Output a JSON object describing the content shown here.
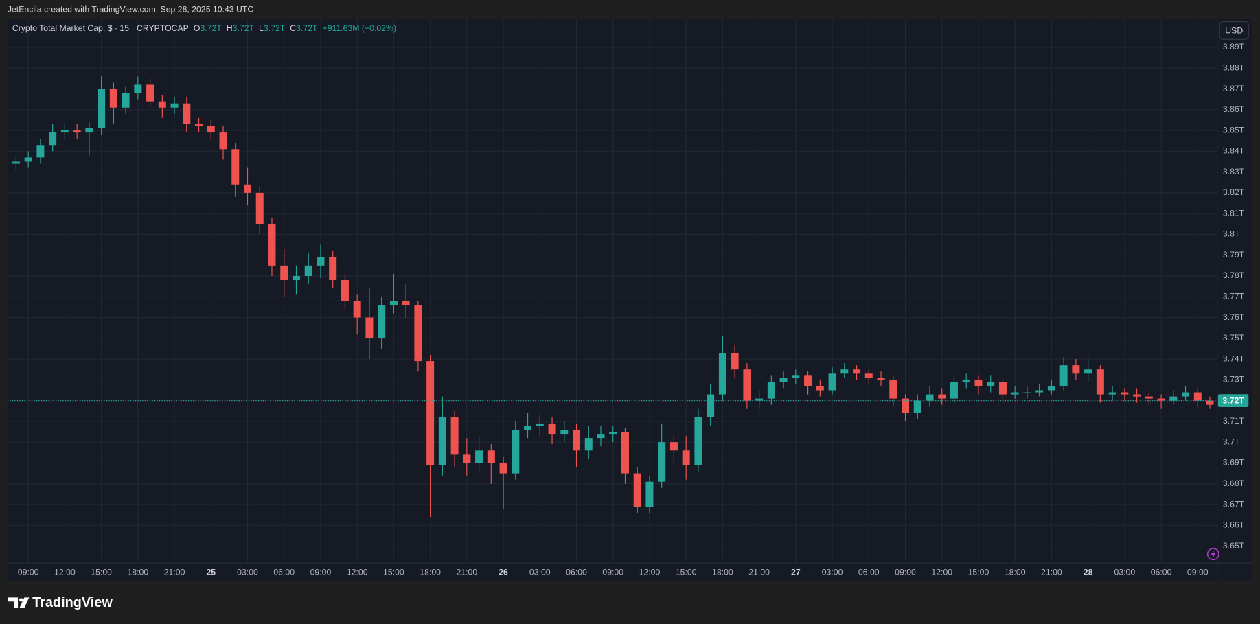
{
  "header": "JetEncila created with TradingView.com, Sep 28, 2025 10:43 UTC",
  "footer_logo": "TradingView",
  "chart_data": {
    "type": "candlestick",
    "title": "Crypto Total Market Cap, $ · 15 · CRYPTOCAP",
    "legend": {
      "open_label": "O",
      "open": "3.72T",
      "high_label": "H",
      "high": "3.72T",
      "low_label": "L",
      "low": "3.72T",
      "close_label": "C",
      "close": "3.72T",
      "change": "+911.63M (+0.02%)"
    },
    "currency": "USD",
    "up_color": "#26a69a",
    "down_color": "#ef5350",
    "x": [
      8,
      9,
      10,
      11,
      12,
      13,
      14,
      15,
      16,
      17,
      18,
      19,
      20,
      21,
      22,
      23,
      24,
      25,
      26,
      27,
      28,
      29,
      30,
      31,
      32,
      33,
      34,
      35,
      36,
      37,
      38,
      39,
      40,
      41,
      42,
      43,
      44,
      45,
      46,
      47,
      48,
      49,
      50,
      51,
      52,
      53,
      54,
      55,
      56,
      57,
      58,
      59,
      60,
      61,
      62,
      63,
      64,
      65,
      66,
      67,
      68,
      69,
      70,
      71,
      72,
      73,
      74,
      75,
      76,
      77,
      78,
      79,
      80,
      81,
      82,
      83,
      84,
      85,
      86,
      87,
      88,
      89,
      90,
      91,
      92,
      93,
      94,
      95,
      96,
      97,
      98,
      99,
      100,
      101,
      102,
      103,
      104,
      105,
      106
    ],
    "open": [
      3.834,
      3.835,
      3.837,
      3.843,
      3.849,
      3.85,
      3.849,
      3.851,
      3.87,
      3.861,
      3.868,
      3.872,
      3.864,
      3.861,
      3.863,
      3.853,
      3.852,
      3.849,
      3.841,
      3.824,
      3.82,
      3.805,
      3.785,
      3.778,
      3.78,
      3.785,
      3.789,
      3.778,
      3.768,
      3.76,
      3.75,
      3.766,
      3.768,
      3.766,
      3.739,
      3.689,
      3.712,
      3.694,
      3.69,
      3.696,
      3.69,
      3.685,
      3.706,
      3.708,
      3.709,
      3.704,
      3.706,
      3.696,
      3.702,
      3.704,
      3.705,
      3.685,
      3.669,
      3.681,
      3.7,
      3.696,
      3.689,
      3.712,
      3.723,
      3.743,
      3.735,
      3.72,
      3.721,
      3.729,
      3.731,
      3.732,
      3.727,
      3.725,
      3.733,
      3.735,
      3.733,
      3.731,
      3.73,
      3.721,
      3.714,
      3.72,
      3.723,
      3.721,
      3.729,
      3.73,
      3.727,
      3.729,
      3.723,
      3.724,
      3.724,
      3.725,
      3.727,
      3.737,
      3.733,
      3.735,
      3.723,
      3.724,
      3.723,
      3.722,
      3.721,
      3.72,
      3.722,
      3.724,
      3.72
    ],
    "high": [
      3.838,
      3.84,
      3.846,
      3.853,
      3.853,
      3.853,
      3.854,
      3.876,
      3.873,
      3.871,
      3.876,
      3.875,
      3.867,
      3.866,
      3.866,
      3.856,
      3.855,
      3.852,
      3.844,
      3.832,
      3.823,
      3.808,
      3.793,
      3.785,
      3.791,
      3.795,
      3.792,
      3.781,
      3.771,
      3.774,
      3.77,
      3.781,
      3.776,
      3.768,
      3.742,
      3.722,
      3.715,
      3.702,
      3.703,
      3.699,
      3.693,
      3.71,
      3.714,
      3.713,
      3.712,
      3.71,
      3.709,
      3.708,
      3.708,
      3.708,
      3.707,
      3.688,
      3.684,
      3.709,
      3.704,
      3.703,
      3.716,
      3.728,
      3.751,
      3.747,
      3.738,
      3.725,
      3.732,
      3.734,
      3.735,
      3.734,
      3.73,
      3.736,
      3.738,
      3.737,
      3.735,
      3.734,
      3.732,
      3.723,
      3.723,
      3.727,
      3.726,
      3.732,
      3.733,
      3.732,
      3.732,
      3.731,
      3.727,
      3.727,
      3.728,
      3.73,
      3.741,
      3.74,
      3.74,
      3.737,
      3.727,
      3.726,
      3.726,
      3.724,
      3.723,
      3.725,
      3.727,
      3.726,
      3.722
    ],
    "low": [
      3.831,
      3.832,
      3.834,
      3.84,
      3.846,
      3.846,
      3.838,
      3.848,
      3.853,
      3.858,
      3.865,
      3.861,
      3.856,
      3.858,
      3.849,
      3.849,
      3.846,
      3.836,
      3.818,
      3.814,
      3.8,
      3.78,
      3.77,
      3.771,
      3.776,
      3.779,
      3.774,
      3.764,
      3.752,
      3.74,
      3.745,
      3.762,
      3.76,
      3.734,
      3.664,
      3.684,
      3.688,
      3.684,
      3.686,
      3.68,
      3.668,
      3.682,
      3.702,
      3.703,
      3.699,
      3.7,
      3.688,
      3.692,
      3.698,
      3.7,
      3.68,
      3.666,
      3.666,
      3.678,
      3.69,
      3.682,
      3.686,
      3.708,
      3.72,
      3.731,
      3.716,
      3.716,
      3.718,
      3.726,
      3.728,
      3.723,
      3.722,
      3.723,
      3.731,
      3.73,
      3.728,
      3.727,
      3.717,
      3.71,
      3.711,
      3.717,
      3.718,
      3.719,
      3.726,
      3.723,
      3.724,
      3.719,
      3.721,
      3.721,
      3.722,
      3.723,
      3.725,
      3.73,
      3.729,
      3.719,
      3.72,
      3.72,
      3.719,
      3.718,
      3.716,
      3.718,
      3.72,
      3.717,
      3.716
    ],
    "close": [
      3.835,
      3.837,
      3.843,
      3.849,
      3.85,
      3.849,
      3.851,
      3.87,
      3.861,
      3.868,
      3.872,
      3.864,
      3.861,
      3.863,
      3.853,
      3.852,
      3.849,
      3.841,
      3.824,
      3.82,
      3.805,
      3.785,
      3.778,
      3.78,
      3.785,
      3.789,
      3.778,
      3.768,
      3.76,
      3.75,
      3.766,
      3.768,
      3.766,
      3.739,
      3.689,
      3.712,
      3.694,
      3.69,
      3.696,
      3.69,
      3.685,
      3.706,
      3.708,
      3.709,
      3.704,
      3.706,
      3.696,
      3.702,
      3.704,
      3.705,
      3.685,
      3.669,
      3.681,
      3.7,
      3.696,
      3.689,
      3.712,
      3.723,
      3.743,
      3.735,
      3.72,
      3.721,
      3.729,
      3.731,
      3.732,
      3.727,
      3.725,
      3.733,
      3.735,
      3.733,
      3.731,
      3.73,
      3.721,
      3.714,
      3.72,
      3.723,
      3.721,
      3.729,
      3.73,
      3.727,
      3.729,
      3.723,
      3.724,
      3.724,
      3.725,
      3.727,
      3.737,
      3.733,
      3.735,
      3.723,
      3.724,
      3.723,
      3.722,
      3.721,
      3.72,
      3.722,
      3.724,
      3.72,
      3.718
    ],
    "xlim": [
      7.29,
      106.6
    ],
    "xticks": [
      {
        "value": 9,
        "label": "09:00"
      },
      {
        "value": 12,
        "label": "12:00"
      },
      {
        "value": 15,
        "label": "15:00"
      },
      {
        "value": 18,
        "label": "18:00"
      },
      {
        "value": 21,
        "label": "21:00"
      },
      {
        "value": 24,
        "label": "25"
      },
      {
        "value": 27,
        "label": "03:00"
      },
      {
        "value": 30,
        "label": "06:00"
      },
      {
        "value": 33,
        "label": "09:00"
      },
      {
        "value": 36,
        "label": "12:00"
      },
      {
        "value": 39,
        "label": "15:00"
      },
      {
        "value": 42,
        "label": "18:00"
      },
      {
        "value": 45,
        "label": "21:00"
      },
      {
        "value": 48,
        "label": "26"
      },
      {
        "value": 51,
        "label": "03:00"
      },
      {
        "value": 54,
        "label": "06:00"
      },
      {
        "value": 57,
        "label": "09:00"
      },
      {
        "value": 60,
        "label": "12:00"
      },
      {
        "value": 63,
        "label": "15:00"
      },
      {
        "value": 66,
        "label": "18:00"
      },
      {
        "value": 69,
        "label": "21:00"
      },
      {
        "value": 72,
        "label": "27"
      },
      {
        "value": 75,
        "label": "03:00"
      },
      {
        "value": 78,
        "label": "06:00"
      },
      {
        "value": 81,
        "label": "09:00"
      },
      {
        "value": 84,
        "label": "12:00"
      },
      {
        "value": 87,
        "label": "15:00"
      },
      {
        "value": 90,
        "label": "18:00"
      },
      {
        "value": 93,
        "label": "21:00"
      },
      {
        "value": 96,
        "label": "28"
      },
      {
        "value": 99,
        "label": "03:00"
      },
      {
        "value": 102,
        "label": "06:00"
      },
      {
        "value": 105,
        "label": "09:00"
      }
    ],
    "ylim": [
      3.6419,
      3.9035
    ],
    "yticks": [
      {
        "value": 3.65,
        "label": "3.65T"
      },
      {
        "value": 3.66,
        "label": "3.66T"
      },
      {
        "value": 3.67,
        "label": "3.67T"
      },
      {
        "value": 3.68,
        "label": "3.68T"
      },
      {
        "value": 3.69,
        "label": "3.69T"
      },
      {
        "value": 3.7,
        "label": "3.7T"
      },
      {
        "value": 3.71,
        "label": "3.71T"
      },
      {
        "value": 3.72,
        "label": "3.72T"
      },
      {
        "value": 3.73,
        "label": "3.73T"
      },
      {
        "value": 3.74,
        "label": "3.74T"
      },
      {
        "value": 3.75,
        "label": "3.75T"
      },
      {
        "value": 3.76,
        "label": "3.76T"
      },
      {
        "value": 3.77,
        "label": "3.77T"
      },
      {
        "value": 3.78,
        "label": "3.78T"
      },
      {
        "value": 3.79,
        "label": "3.79T"
      },
      {
        "value": 3.8,
        "label": "3.8T"
      },
      {
        "value": 3.81,
        "label": "3.81T"
      },
      {
        "value": 3.82,
        "label": "3.82T"
      },
      {
        "value": 3.83,
        "label": "3.83T"
      },
      {
        "value": 3.84,
        "label": "3.84T"
      },
      {
        "value": 3.85,
        "label": "3.85T"
      },
      {
        "value": 3.86,
        "label": "3.86T"
      },
      {
        "value": 3.87,
        "label": "3.87T"
      },
      {
        "value": 3.88,
        "label": "3.88T"
      },
      {
        "value": 3.89,
        "label": "3.89T"
      }
    ],
    "grid": true,
    "last_price": 3.72,
    "last_price_label": "3.72T"
  }
}
